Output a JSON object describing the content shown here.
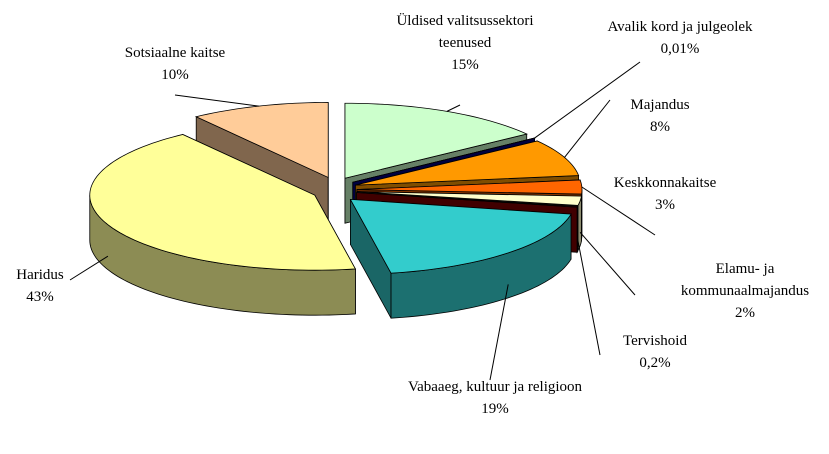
{
  "chart_data": {
    "type": "pie",
    "categories": [
      "Üldised valitsussektori teenused",
      "Avalik kord ja julgeolek",
      "Majandus",
      "Keskkonnakaitse",
      "Elamu- ja kommunaalmajandus",
      "Tervishoid",
      "Vabaaeg, kultuur ja religioon",
      "Haridus",
      "Sotsiaalne kaitse"
    ],
    "values": [
      15,
      0.01,
      8,
      3,
      2,
      0.2,
      19,
      43,
      10
    ],
    "value_labels": [
      "15%",
      "0,01%",
      "8%",
      "3%",
      "2%",
      "0,2%",
      "19%",
      "43%",
      "10%"
    ],
    "colors": [
      "#ccffcc",
      "#000080",
      "#ff9900",
      "#ff6600",
      "#ffffcc",
      "#800000",
      "#33cccc",
      "#ffff99",
      "#ffcc99"
    ]
  }
}
